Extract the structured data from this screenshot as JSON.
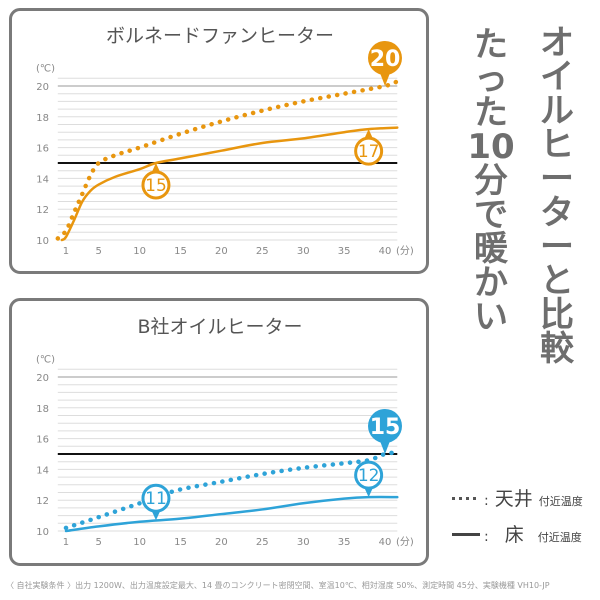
{
  "headline": {
    "main": "オイルヒーターと比較",
    "sub": "たった10分で暖かい"
  },
  "legend": {
    "ceiling": {
      "symbol": "dotted",
      "colon": ":",
      "label": "天井",
      "suffix": "付近温度"
    },
    "floor": {
      "symbol": "solid",
      "colon": ":",
      "label": "床",
      "suffix": "付近温度"
    }
  },
  "footnote": "〈 自社実験条件 〉出力 1200W、出力温度設定最大、14 畳のコンクリート密閉空間、室温10℃、相対湿度 50%、測定時間 45分、実験機種 VH10-JP",
  "chart_data": [
    {
      "type": "line",
      "title": "ボルネードファンヒーター",
      "color": "#e8960f",
      "ylabel": "(℃)",
      "xlabel": "(分)",
      "ylim": [
        10,
        20.5
      ],
      "xlim": [
        0,
        41.5
      ],
      "yticks": [
        "10",
        "12",
        "14",
        "16",
        "18",
        "20"
      ],
      "xticks": [
        "1",
        "5",
        "10",
        "15",
        "20",
        "25",
        "30",
        "35",
        "40"
      ],
      "grid": true,
      "reference_line": 15,
      "series": [
        {
          "style": "dotted",
          "x": [
            0,
            1,
            2,
            3,
            4,
            5,
            7,
            10,
            15,
            20,
            25,
            30,
            35,
            40,
            41.5
          ],
          "y": [
            10.1,
            10.6,
            11.8,
            13,
            14.2,
            15,
            15.5,
            16,
            16.9,
            17.7,
            18.4,
            19,
            19.5,
            20,
            20.3
          ]
        },
        {
          "style": "solid",
          "x": [
            0.5,
            1,
            2,
            3,
            4,
            5,
            7,
            10,
            12,
            15,
            20,
            25,
            30,
            35,
            38,
            41.5
          ],
          "y": [
            10,
            10.2,
            11.3,
            12.5,
            13.2,
            13.6,
            14.1,
            14.6,
            15,
            15.3,
            15.8,
            16.3,
            16.6,
            17,
            17.2,
            17.3
          ]
        }
      ],
      "callouts": [
        {
          "label": "20",
          "x": 40,
          "y": 20,
          "filled": true,
          "direction": "down"
        },
        {
          "label": "15",
          "x": 12,
          "y": 15,
          "filled": false,
          "direction": "up"
        },
        {
          "label": "17",
          "x": 38,
          "y": 17.2,
          "filled": false,
          "direction": "up"
        }
      ]
    },
    {
      "type": "line",
      "title": "B社オイルヒーター",
      "color": "#2ea3d8",
      "ylabel": "(℃)",
      "xlabel": "(分)",
      "ylim": [
        10,
        20.5
      ],
      "xlim": [
        0,
        41.5
      ],
      "yticks": [
        "10",
        "12",
        "14",
        "16",
        "18",
        "20"
      ],
      "xticks": [
        "1",
        "5",
        "10",
        "15",
        "20",
        "25",
        "30",
        "35",
        "40"
      ],
      "grid": true,
      "reference_line": 15,
      "series": [
        {
          "style": "dotted",
          "x": [
            1,
            5,
            10,
            12,
            15,
            20,
            25,
            30,
            35,
            38,
            40,
            41.5
          ],
          "y": [
            10.2,
            10.9,
            11.8,
            12.2,
            12.7,
            13.2,
            13.7,
            14.1,
            14.4,
            14.6,
            15,
            15.1
          ]
        },
        {
          "style": "solid",
          "x": [
            1,
            5,
            10,
            15,
            20,
            25,
            30,
            35,
            38,
            41.5
          ],
          "y": [
            10,
            10.3,
            10.6,
            10.8,
            11.1,
            11.4,
            11.8,
            12.1,
            12.2,
            12.2
          ]
        }
      ],
      "callouts": [
        {
          "label": "15",
          "x": 40,
          "y": 15,
          "filled": true,
          "direction": "down"
        },
        {
          "label": "12",
          "x": 38,
          "y": 12.2,
          "filled": false,
          "direction": "down"
        },
        {
          "label": "11",
          "x": 12,
          "y": 10.7,
          "filled": false,
          "direction": "down"
        }
      ]
    }
  ]
}
